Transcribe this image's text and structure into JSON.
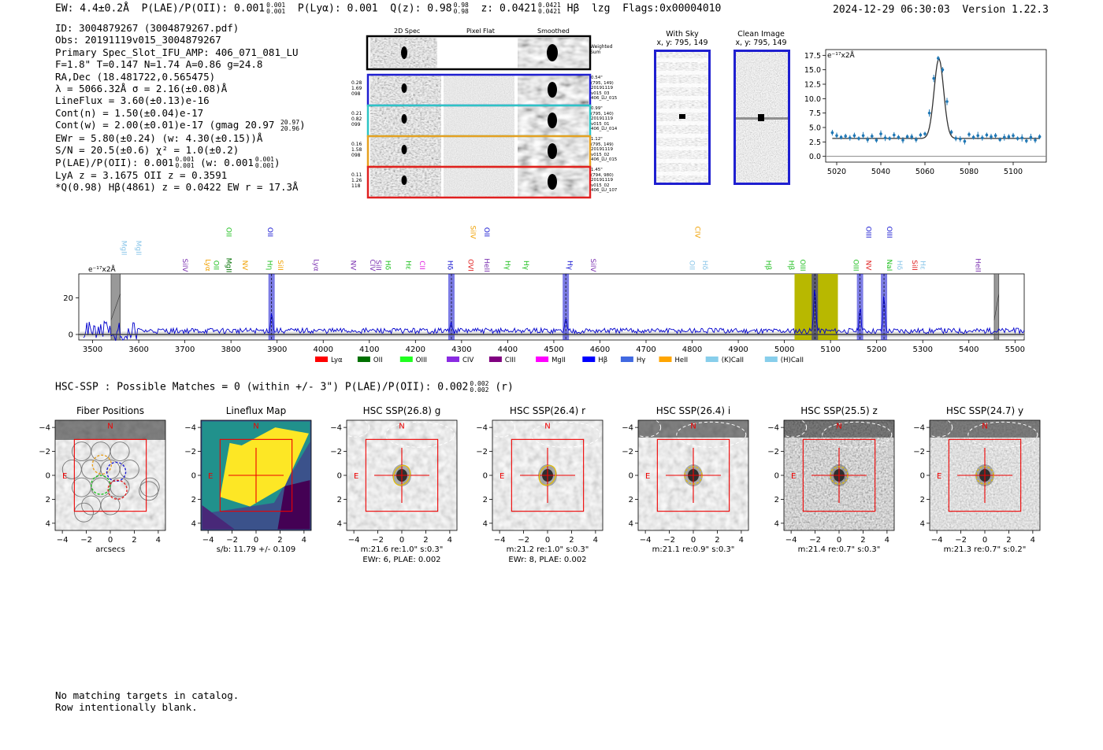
{
  "header": {
    "ew": "EW: 4.4±0.2Å",
    "plae_label": "P(LAE)/P(OII): 0.001",
    "plae_sup": "0.001",
    "plae_sub": "0.001",
    "plya": "P(Lyα): 0.001",
    "qz_label": "Q(z): 0.98",
    "qz_sup": "0.98",
    "qz_sub": "0.98",
    "z_label": "z: 0.0421",
    "z_sup": "0.0421",
    "z_sub": "0.0421",
    "line_name": "Hβ",
    "lzg": "lzg",
    "flags": "Flags:0x00004010",
    "timestamp": "2024-12-29 06:30:03",
    "version": "Version 1.22.3"
  },
  "info": {
    "id": "ID: 3004879267 (3004879267.pdf)",
    "obs": "Obs: 20191119v015_3004879267",
    "slot": "Primary Spec_Slot_IFU_AMP: 406_071_081_LU",
    "params": "F=1.8\"  T=0.147  N=1.74  A=0.86  g=24.8",
    "radec": "RA,Dec (18.481722,0.565475)",
    "lambda": "λ = 5066.32Å  σ = 2.16(±0.08)Å",
    "lineflux": "LineFlux = 3.60(±0.13)e-16",
    "contn": "Cont(n) = 1.50(±0.04)e-17",
    "contw": "Cont(w) = 2.00(±0.01)e-17 (gmag 20.97",
    "contw_sup": "20.97",
    "contw_sub": "20.96",
    "contw_end": ")",
    "ewr": "EWr = 5.80(±0.24) (w: 4.30(±0.15))Å",
    "sn": "S/N = 20.5(±0.6)  χ² = 1.0(±0.2)",
    "plae": "P(LAE)/P(OII): 0.001",
    "plae_sup": "0.001",
    "plae_sub": "0.001",
    "plae_w": "(w: 0.001",
    "plae_w_sup": "0.001",
    "plae_w_sub": "0.001",
    "plae_w_end": ")",
    "lya": "LyA z = 3.1675  OII z = 0.3591",
    "q": "*Q(0.98) Hβ(4861) z = 0.0422  EW r = 17.3Å"
  },
  "cutouts": {
    "col_2d": "2D Spec",
    "col_flat": "Pixel Flat",
    "col_smooth": "Smoothed",
    "weighted": "Weighted Sum",
    "rows": [
      {
        "stats": [
          "0.28",
          "1.69",
          "098"
        ],
        "meta": [
          "0.54\"",
          "(795, 149)",
          "20191119",
          "v015_03",
          "406_LU_015"
        ],
        "color": "#1f1fd0"
      },
      {
        "stats": [
          "0.21",
          "0.82",
          "099"
        ],
        "meta": [
          "0.99\"",
          "(795, 140)",
          "20191119",
          "v015_01",
          "406_LU_014"
        ],
        "color": "#2ec4c4"
      },
      {
        "stats": [
          "0.16",
          "1.58",
          "098"
        ],
        "meta": [
          "1.12\"",
          "(795, 149)",
          "20191119",
          "v015_02",
          "406_LU_015"
        ],
        "color": "#e6a020"
      },
      {
        "stats": [
          "0.11",
          "1.26",
          "118"
        ],
        "meta": [
          "1.45\"",
          "(794, 980)",
          "20191119",
          "v015_02",
          "406_LU_107"
        ],
        "color": "#e02020"
      }
    ],
    "with_sky": "With Sky",
    "with_sky_xy": "x, y: 795, 149",
    "clean": "Clean Image",
    "clean_xy": "x, y: 795, 149"
  },
  "chart_data": [
    {
      "type": "scatter",
      "title": "",
      "ylabel_unit": "e⁻¹⁷x2Å",
      "xlim": [
        5015,
        5115
      ],
      "ylim": [
        -1,
        18.5
      ],
      "xticks": [
        "5020",
        "5040",
        "5060",
        "5080",
        "5100"
      ],
      "yticks": [
        "0.0",
        "2.5",
        "5.0",
        "7.5",
        "10.0",
        "12.5",
        "15.0",
        "17.5"
      ],
      "points_x": [
        5018,
        5020,
        5022,
        5024,
        5026,
        5028,
        5030,
        5032,
        5034,
        5036,
        5038,
        5040,
        5042,
        5044,
        5046,
        5048,
        5050,
        5052,
        5054,
        5056,
        5058,
        5060,
        5062,
        5064,
        5066,
        5068,
        5070,
        5072,
        5074,
        5076,
        5078,
        5080,
        5082,
        5084,
        5086,
        5088,
        5090,
        5092,
        5094,
        5096,
        5098,
        5100,
        5102,
        5104,
        5106,
        5108,
        5110,
        5112
      ],
      "points_y": [
        4.1,
        3.6,
        3.3,
        3.5,
        3.2,
        3.6,
        3.1,
        3.6,
        2.9,
        3.5,
        2.8,
        3.9,
        3.2,
        3.1,
        3.7,
        3.3,
        2.8,
        3.4,
        3.4,
        2.9,
        3.7,
        3.9,
        7.5,
        13.5,
        17.0,
        15.0,
        9.5,
        4.2,
        3.1,
        3.0,
        2.6,
        3.8,
        3.3,
        3.6,
        3.2,
        3.7,
        3.4,
        3.6,
        2.9,
        3.3,
        3.4,
        3.6,
        3.1,
        3.2,
        2.7,
        3.3,
        2.8,
        3.4
      ],
      "fit": {
        "center": 5066.32,
        "sigma": 2.16,
        "amplitude": 13.8,
        "continuum": 3.1
      }
    },
    {
      "type": "line",
      "ylabel_unit": "e⁻¹⁷x2Å",
      "xlim": [
        3470,
        5520
      ],
      "ylim": [
        -3,
        33
      ],
      "xticks": [
        "3500",
        "3600",
        "3700",
        "3800",
        "3900",
        "4000",
        "4100",
        "4200",
        "4300",
        "4400",
        "4500",
        "4600",
        "4700",
        "4800",
        "4900",
        "5000",
        "5100",
        "5200",
        "5300",
        "5400",
        "5500"
      ],
      "yticks": [
        "0",
        "20"
      ],
      "highlight_lines": [
        3888,
        4278,
        4526,
        5066,
        5164,
        5216
      ],
      "bad_regions": [
        [
          3540,
          3560
        ],
        [
          5455,
          5465
        ]
      ],
      "yellow_band": [
        5022,
        5116
      ],
      "continuum": 2.0,
      "line_labels": [
        {
          "name": "MgII",
          "x": 3558,
          "row": 1,
          "color": "#87c4e8"
        },
        {
          "name": "MgII",
          "x": 3590,
          "row": 1,
          "color": "#87c4e8"
        },
        {
          "name": "SiIV",
          "x": 3690,
          "row": 2,
          "color": "#7a2fb0"
        },
        {
          "name": "Lyα",
          "x": 3740,
          "row": 2,
          "color": "#f0a000"
        },
        {
          "name": "OII",
          "x": 3758,
          "row": 2,
          "color": "#20c020"
        },
        {
          "name": "MgII",
          "x": 3785,
          "row": 2,
          "color": "#007000"
        },
        {
          "name": "NV",
          "x": 3820,
          "row": 2,
          "color": "#f0a000"
        },
        {
          "name": "OII",
          "x": 3785,
          "row": 0,
          "color": "#20c020"
        },
        {
          "name": "OII",
          "x": 3875,
          "row": 0,
          "color": "#1010d0"
        },
        {
          "name": "Hη",
          "x": 3874,
          "row": 2,
          "color": "#20c020"
        },
        {
          "name": "SiII",
          "x": 3897,
          "row": 2,
          "color": "#f0a000"
        },
        {
          "name": "Lyα",
          "x": 3975,
          "row": 2,
          "color": "#7a2fb0"
        },
        {
          "name": "NV",
          "x": 4055,
          "row": 2,
          "color": "#7a2fb0"
        },
        {
          "name": "CIV",
          "x": 4097,
          "row": 2,
          "color": "#7a2fb0"
        },
        {
          "name": "SiII",
          "x": 4110,
          "row": 2,
          "color": "#7a2fb0"
        },
        {
          "name": "Hδ",
          "x": 4130,
          "row": 2,
          "color": "#20c020"
        },
        {
          "name": "Hε",
          "x": 4175,
          "row": 2,
          "color": "#20c020"
        },
        {
          "name": "CII",
          "x": 4205,
          "row": 2,
          "color": "#e020e0"
        },
        {
          "name": "Hδ",
          "x": 4265,
          "row": 2,
          "color": "#1010d0"
        },
        {
          "name": "SiIV",
          "x": 4315,
          "row": 0,
          "color": "#f0a000"
        },
        {
          "name": "OII",
          "x": 4345,
          "row": 0,
          "color": "#1010d0"
        },
        {
          "name": "OVI",
          "x": 4310,
          "row": 2,
          "color": "#e02020"
        },
        {
          "name": "HeII",
          "x": 4345,
          "row": 2,
          "color": "#7a2fb0"
        },
        {
          "name": "Hγ",
          "x": 4390,
          "row": 2,
          "color": "#20c020"
        },
        {
          "name": "Hγ",
          "x": 4430,
          "row": 2,
          "color": "#20c020"
        },
        {
          "name": "Hγ",
          "x": 4525,
          "row": 2,
          "color": "#1010d0"
        },
        {
          "name": "SiIV",
          "x": 4575,
          "row": 2,
          "color": "#7a2fb0"
        },
        {
          "name": "CIV",
          "x": 4802,
          "row": 0,
          "color": "#f0a000"
        },
        {
          "name": "OII",
          "x": 4790,
          "row": 2,
          "color": "#87c4e8"
        },
        {
          "name": "Hδ",
          "x": 4818,
          "row": 2,
          "color": "#87c4e8"
        },
        {
          "name": "Hβ",
          "x": 4955,
          "row": 2,
          "color": "#20c020"
        },
        {
          "name": "Hβ",
          "x": 5005,
          "row": 2,
          "color": "#20c020"
        },
        {
          "name": "OIII",
          "x": 5030,
          "row": 2,
          "color": "#20c020"
        },
        {
          "name": "OIII",
          "x": 5145,
          "row": 2,
          "color": "#20c020"
        },
        {
          "name": "OIII",
          "x": 5172,
          "row": 0,
          "color": "#1010d0"
        },
        {
          "name": "OIII",
          "x": 5218,
          "row": 0,
          "color": "#1010d0"
        },
        {
          "name": "NV",
          "x": 5172,
          "row": 2,
          "color": "#e02020"
        },
        {
          "name": "NaI",
          "x": 5218,
          "row": 2,
          "color": "#20c020"
        },
        {
          "name": "Hδ",
          "x": 5240,
          "row": 2,
          "color": "#87c4e8"
        },
        {
          "name": "SiII",
          "x": 5272,
          "row": 2,
          "color": "#e02020"
        },
        {
          "name": "Hε",
          "x": 5290,
          "row": 2,
          "color": "#87c4e8"
        },
        {
          "name": "HeII",
          "x": 5410,
          "row": 2,
          "color": "#7a2fb0"
        }
      ],
      "legend": [
        {
          "name": "Lyα",
          "color": "#ff0000"
        },
        {
          "name": "OII",
          "color": "#007000"
        },
        {
          "name": "OIII",
          "color": "#20ff20"
        },
        {
          "name": "CIV",
          "color": "#8a2be2"
        },
        {
          "name": "CIII",
          "color": "#800080"
        },
        {
          "name": "MgII",
          "color": "#ff00ff"
        },
        {
          "name": "Hβ",
          "color": "#0000ff"
        },
        {
          "name": "Hγ",
          "color": "#4169e1"
        },
        {
          "name": "HeII",
          "color": "#ffa500"
        },
        {
          "name": "(K)CaII",
          "color": "#87ceeb"
        },
        {
          "name": "(H)CaII",
          "color": "#87ceeb"
        }
      ]
    }
  ],
  "hsc": {
    "summary": "HSC-SSP : Possible Matches = 0 (within +/- 3\")  P(LAE)/P(OII): 0.002",
    "summary_sup": "0.002",
    "summary_sub": "0.002",
    "summary_end": "(r)",
    "ticks": [
      "−4",
      "−2",
      "0",
      "2",
      "4"
    ],
    "yticks": [
      "4",
      "2",
      "0",
      "−2",
      "−4"
    ],
    "north": "N",
    "east": "E",
    "panels": [
      {
        "title": "Fiber Positions",
        "cap1": "arcsecs",
        "cap2": ""
      },
      {
        "title": "Lineflux Map",
        "cap1": "s/b: 11.79 +/- 0.109",
        "cap2": ""
      },
      {
        "title": "HSC SSP(26.8) g",
        "cap1": "m:21.6  re:1.0\"  s:0.3\"",
        "cap2": "EWr: 6, PLAE: 0.002"
      },
      {
        "title": "HSC SSP(26.4) r",
        "cap1": "m:21.2  re:1.0\"  s:0.3\"",
        "cap2": "EWr: 8, PLAE: 0.002"
      },
      {
        "title": "HSC SSP(26.4) i",
        "cap1": "m:21.1  re:0.9\"  s:0.3\"",
        "cap2": ""
      },
      {
        "title": "HSC SSP(25.5) z",
        "cap1": "m:21.4  re:0.7\"  s:0.3\"",
        "cap2": ""
      },
      {
        "title": "HSC SSP(24.7) y",
        "cap1": "m:21.3  re:0.7\"  s:0.2\"",
        "cap2": ""
      }
    ]
  },
  "footer": {
    "line1": "No matching targets in catalog.",
    "line2": "Row intentionally blank."
  }
}
